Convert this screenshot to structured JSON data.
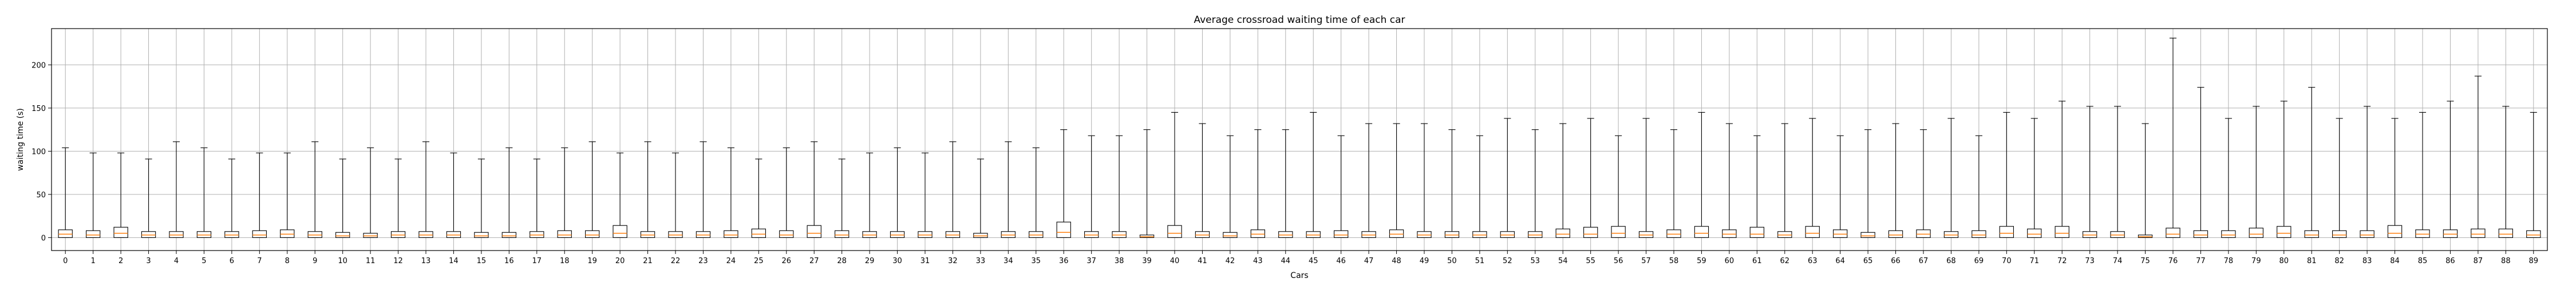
{
  "chart_data": {
    "type": "box",
    "title": "Average crossroad waiting time of each car",
    "xlabel": "Cars",
    "ylabel": "waiting time (s)",
    "ylim": [
      -15,
      242
    ],
    "yticks": [
      0,
      50,
      100,
      150,
      200
    ],
    "grid": true,
    "colors": {
      "box_fill": "#ffffff",
      "box_edge": "#000000",
      "median": "#ff7f0e",
      "grid": "#b0b0b0"
    },
    "categories": [
      "0",
      "1",
      "2",
      "3",
      "4",
      "5",
      "6",
      "7",
      "8",
      "9",
      "10",
      "11",
      "12",
      "13",
      "14",
      "15",
      "16",
      "17",
      "18",
      "19",
      "20",
      "21",
      "22",
      "23",
      "24",
      "25",
      "26",
      "27",
      "28",
      "29",
      "30",
      "31",
      "32",
      "33",
      "34",
      "35",
      "36",
      "37",
      "38",
      "39",
      "40",
      "41",
      "42",
      "43",
      "44",
      "45",
      "46",
      "47",
      "48",
      "49",
      "50",
      "51",
      "52",
      "53",
      "54",
      "55",
      "56",
      "57",
      "58",
      "59",
      "60",
      "61",
      "62",
      "63",
      "64",
      "65",
      "66",
      "67",
      "68",
      "69",
      "70",
      "71",
      "72",
      "73",
      "74",
      "75",
      "76",
      "77",
      "78",
      "79",
      "80",
      "81",
      "82",
      "83",
      "84",
      "85",
      "86",
      "87",
      "88",
      "89"
    ],
    "whisker_high": [
      104,
      98,
      98,
      91,
      111,
      104,
      91,
      98,
      98,
      111,
      91,
      104,
      91,
      111,
      98,
      91,
      104,
      91,
      104,
      111,
      98,
      111,
      98,
      111,
      104,
      91,
      104,
      111,
      91,
      98,
      104,
      98,
      111,
      91,
      111,
      104,
      125,
      118,
      118,
      125,
      145,
      132,
      118,
      125,
      125,
      145,
      118,
      132,
      132,
      132,
      125,
      118,
      138,
      125,
      132,
      138,
      118,
      138,
      125,
      145,
      132,
      118,
      132,
      138,
      118,
      125,
      132,
      125,
      138,
      118,
      145,
      138,
      158,
      152,
      152,
      132,
      231,
      174,
      138,
      152,
      158,
      174,
      138,
      152,
      138,
      145,
      158,
      187,
      152,
      145
    ],
    "q3": [
      9,
      8,
      12,
      7,
      7,
      7,
      7,
      8,
      9,
      7,
      6,
      5,
      7,
      7,
      7,
      6,
      6,
      7,
      8,
      8,
      14,
      7,
      7,
      7,
      8,
      10,
      8,
      14,
      8,
      7,
      7,
      7,
      7,
      5,
      7,
      7,
      18,
      7,
      7,
      3,
      14,
      7,
      6,
      9,
      7,
      7,
      8,
      7,
      9,
      7,
      7,
      7,
      7,
      7,
      10,
      12,
      13,
      7,
      9,
      13,
      9,
      12,
      7,
      13,
      9,
      6,
      8,
      9,
      7,
      8,
      13,
      10,
      13,
      7,
      7,
      3,
      11,
      8,
      8,
      11,
      13,
      8,
      8,
      8,
      14,
      9,
      9,
      10,
      10,
      8
    ],
    "median": [
      4,
      3,
      5,
      3,
      3,
      3,
      3,
      3,
      4,
      3,
      2,
      2,
      3,
      3,
      3,
      2,
      2,
      3,
      3,
      3,
      5,
      3,
      3,
      3,
      3,
      4,
      3,
      5,
      3,
      3,
      3,
      3,
      3,
      2,
      3,
      3,
      6,
      3,
      3,
      1,
      5,
      3,
      2,
      4,
      3,
      3,
      3,
      3,
      4,
      3,
      3,
      3,
      3,
      3,
      4,
      4,
      5,
      3,
      4,
      5,
      4,
      4,
      3,
      5,
      4,
      2,
      3,
      4,
      3,
      3,
      5,
      4,
      5,
      3,
      3,
      1,
      4,
      3,
      3,
      4,
      5,
      3,
      3,
      3,
      5,
      4,
      4,
      4,
      4,
      3
    ],
    "q1": [
      0,
      0,
      0,
      0,
      0,
      0,
      0,
      0,
      0,
      0,
      0,
      0,
      0,
      0,
      0,
      0,
      0,
      0,
      0,
      0,
      0,
      0,
      0,
      0,
      0,
      0,
      0,
      0,
      0,
      0,
      0,
      0,
      0,
      0,
      0,
      0,
      0,
      0,
      0,
      0,
      0,
      0,
      0,
      0,
      0,
      0,
      0,
      0,
      0,
      0,
      0,
      0,
      0,
      0,
      0,
      0,
      0,
      0,
      0,
      0,
      0,
      0,
      0,
      0,
      0,
      0,
      0,
      0,
      0,
      0,
      0,
      0,
      0,
      0,
      0,
      0,
      0,
      0,
      0,
      0,
      0,
      0,
      0,
      0,
      0,
      0,
      0,
      0,
      0,
      0
    ],
    "whisker_low": [
      0,
      0,
      0,
      0,
      0,
      0,
      0,
      0,
      0,
      0,
      0,
      0,
      0,
      0,
      0,
      0,
      0,
      0,
      0,
      0,
      0,
      0,
      0,
      0,
      0,
      0,
      0,
      0,
      0,
      0,
      0,
      0,
      0,
      0,
      0,
      0,
      0,
      0,
      0,
      0,
      0,
      0,
      0,
      0,
      0,
      0,
      0,
      0,
      0,
      0,
      0,
      0,
      0,
      0,
      0,
      0,
      0,
      0,
      0,
      0,
      0,
      0,
      0,
      0,
      0,
      0,
      0,
      0,
      0,
      0,
      0,
      0,
      0,
      0,
      0,
      0,
      0,
      0,
      0,
      0,
      0,
      0,
      0,
      0,
      0,
      0,
      0,
      0,
      0,
      0
    ]
  }
}
